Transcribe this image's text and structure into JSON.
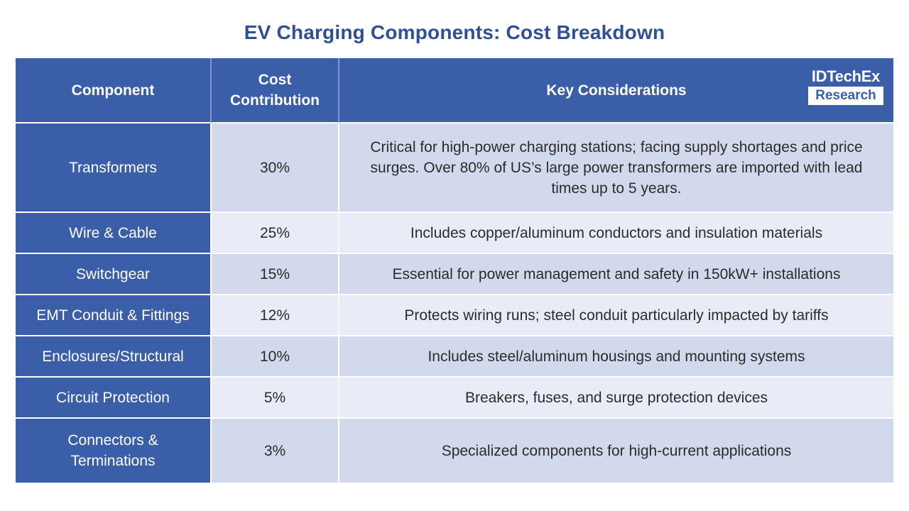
{
  "title": "EV Charging Components: Cost Breakdown",
  "logo": {
    "top": "IDTechEx",
    "bottom": "Research"
  },
  "colors": {
    "header": "#3b5ea8",
    "title": "#2f4f96",
    "row_odd": "#d3d9ec",
    "row_even": "#e9ecf6"
  },
  "table": {
    "headers": [
      "Component",
      "Cost Contribution",
      "Key Considerations"
    ],
    "rows": [
      {
        "component": "Transformers",
        "cost": "30%",
        "considerations": "Critical for high-power charging stations; facing supply shortages and price surges. Over 80% of US’s large power transformers are imported with lead times up to 5 years."
      },
      {
        "component": "Wire & Cable",
        "cost": "25%",
        "considerations": "Includes copper/aluminum conductors and insulation materials"
      },
      {
        "component": "Switchgear",
        "cost": "15%",
        "considerations": "Essential for power management and safety in 150kW+ installations"
      },
      {
        "component": "EMT Conduit & Fittings",
        "cost": "12%",
        "considerations": "Protects wiring runs; steel conduit particularly impacted by tariffs"
      },
      {
        "component": "Enclosures/Structural",
        "cost": "10%",
        "considerations": "Includes steel/aluminum housings and mounting systems"
      },
      {
        "component": "Circuit Protection",
        "cost": "5%",
        "considerations": "Breakers, fuses, and surge protection devices"
      },
      {
        "component": "Connectors & Terminations",
        "cost": "3%",
        "considerations": "Specialized components for high-current applications"
      }
    ]
  }
}
